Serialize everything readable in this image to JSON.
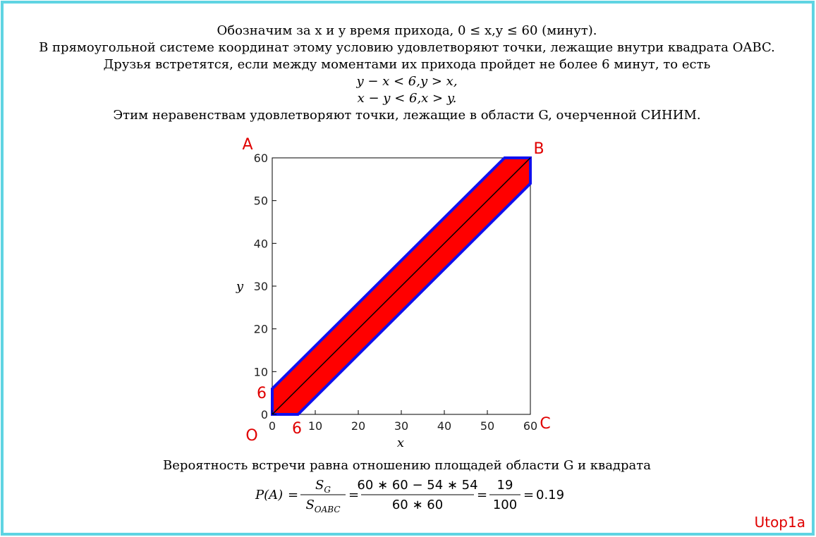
{
  "header": {
    "lines": [
      "Обозначим за x и y время прихода, 0 ≤ x,y ≤ 60 (минут).",
      "В прямоугольной системе координат этому условию удовлетворяют точки, лежащие внутри квадрата OABC.",
      "Друзья встретятся, если между моментами их прихода пройдет не более 6 минут, то есть",
      "y − x < 6,y > x,",
      "x − y < 6,x > y.",
      "Этим неравенствам удовлетворяют точки, лежащие в области G, очерченной СИНИМ."
    ]
  },
  "chart_data": {
    "type": "area",
    "xlabel": "x",
    "ylabel": "y",
    "xlim": [
      0,
      60
    ],
    "ylim": [
      0,
      60
    ],
    "xticks": [
      0,
      10,
      20,
      30,
      40,
      50,
      60
    ],
    "yticks": [
      0,
      10,
      20,
      30,
      40,
      50,
      60
    ],
    "region": {
      "x": [
        0,
        6,
        60,
        60,
        54,
        0
      ],
      "y": [
        0,
        0,
        54,
        60,
        60,
        6
      ],
      "color": "#ff0000",
      "edge_color": "#1010ee"
    },
    "diagonal": {
      "x": [
        0,
        60
      ],
      "y": [
        0,
        60
      ],
      "color": "#000000"
    },
    "point_labels": [
      "A",
      "B",
      "C",
      "O",
      "6",
      "6"
    ]
  },
  "footer": {
    "sentence": "Вероятность встречи равна отношению площадей области G и квадрата",
    "formula": {
      "lhs": "P(A)",
      "fractions": [
        {
          "num": "S",
          "num_sub": "G",
          "den": "S",
          "den_sub": "OABC"
        },
        {
          "num": "60 ∗ 60 − 54 ∗ 54",
          "den": "60 ∗ 60"
        },
        {
          "num": "19",
          "den": "100"
        }
      ],
      "result": "0.19"
    },
    "signature": "Utop1a"
  }
}
